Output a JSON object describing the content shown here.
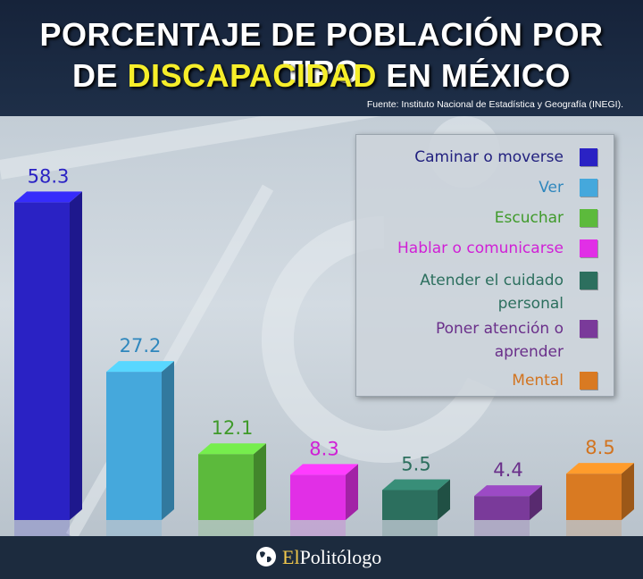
{
  "header": {
    "title_line1": "PORCENTAJE DE POBLACIÓN POR TIPO",
    "title_line2_pre": "DE ",
    "title_line2_highlight": "DISCAPACIDAD",
    "title_line2_post": " EN MÉXICO",
    "source": "Fuente: Instituto Nacional de Estadística y Geografía (INEGI)."
  },
  "chart_data": {
    "type": "bar",
    "title": "PORCENTAJE DE POBLACIÓN POR TIPO DE DISCAPACIDAD EN MÉXICO",
    "xlabel": "",
    "ylabel": "",
    "ylim": [
      0,
      60
    ],
    "categories": [
      "Caminar o moverse",
      "Ver",
      "Escuchar",
      "Hablar o comunicarse",
      "Atender el cuidado personal",
      "Poner atención o aprender",
      "Mental"
    ],
    "values": [
      58.3,
      27.2,
      12.1,
      8.3,
      5.5,
      4.4,
      8.5
    ],
    "value_labels": [
      "58.3",
      "27.2",
      "12.1",
      "8.3",
      "5.5",
      "4.4",
      "8.5"
    ],
    "colors": [
      "#2a22c4",
      "#45a8dc",
      "#5cba3c",
      "#e12fe6",
      "#2c6f5e",
      "#7a3a9a",
      "#d97a22"
    ],
    "label_colors": [
      "#2a22c4",
      "#2f87bd",
      "#3f9a2a",
      "#d01fd6",
      "#2c6f5e",
      "#6a2f8a",
      "#d27420"
    ],
    "legend_position": "top-right"
  },
  "legend": {
    "items": [
      {
        "line1": "Caminar o moverse",
        "line2": ""
      },
      {
        "line1": "Ver",
        "line2": ""
      },
      {
        "line1": "Escuchar",
        "line2": ""
      },
      {
        "line1": "Hablar o comunicarse",
        "line2": ""
      },
      {
        "line1": "Atender el cuidado",
        "line2": "personal"
      },
      {
        "line1": "Poner atención o",
        "line2": "aprender"
      },
      {
        "line1": "Mental",
        "line2": ""
      }
    ]
  },
  "footer": {
    "logo_prefix": "El",
    "logo_name": "Politólogo",
    "logo_icon": "globe-icon"
  }
}
